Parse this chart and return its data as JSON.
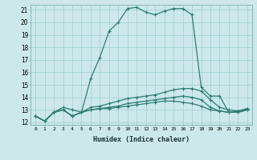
{
  "title": "",
  "xlabel": "Humidex (Indice chaleur)",
  "ylabel": "",
  "xlim": [
    -0.5,
    23.5
  ],
  "ylim": [
    11.8,
    21.4
  ],
  "yticks": [
    12,
    13,
    14,
    15,
    16,
    17,
    18,
    19,
    20,
    21
  ],
  "xticks": [
    0,
    1,
    2,
    3,
    4,
    5,
    6,
    7,
    8,
    9,
    10,
    11,
    12,
    13,
    14,
    15,
    16,
    17,
    18,
    19,
    20,
    21,
    22,
    23
  ],
  "bg_color": "#cde8ea",
  "line_color": "#2e7d72",
  "grid_color": "#9ecfcf",
  "lines": [
    {
      "x": [
        0,
        1,
        2,
        3,
        4,
        5,
        6,
        7,
        8,
        9,
        10,
        11,
        12,
        13,
        14,
        15,
        16,
        17,
        18,
        19,
        20,
        21,
        22,
        23
      ],
      "y": [
        12.5,
        12.1,
        12.8,
        13.2,
        13.0,
        12.8,
        15.5,
        17.2,
        19.3,
        20.0,
        21.1,
        21.2,
        20.8,
        20.6,
        20.9,
        21.1,
        21.1,
        20.6,
        14.8,
        14.1,
        14.1,
        12.8,
        12.9,
        13.1
      ]
    },
    {
      "x": [
        0,
        1,
        2,
        3,
        4,
        5,
        6,
        7,
        8,
        9,
        10,
        11,
        12,
        13,
        14,
        15,
        16,
        17,
        18,
        19,
        20,
        21,
        22,
        23
      ],
      "y": [
        12.5,
        12.1,
        12.8,
        13.0,
        12.5,
        12.8,
        13.2,
        13.3,
        13.5,
        13.7,
        13.9,
        14.0,
        14.1,
        14.2,
        14.4,
        14.6,
        14.7,
        14.7,
        14.5,
        13.8,
        13.2,
        13.0,
        12.9,
        13.1
      ]
    },
    {
      "x": [
        0,
        1,
        2,
        3,
        4,
        5,
        6,
        7,
        8,
        9,
        10,
        11,
        12,
        13,
        14,
        15,
        16,
        17,
        18,
        19,
        20,
        21,
        22,
        23
      ],
      "y": [
        12.5,
        12.1,
        12.8,
        13.0,
        12.5,
        12.8,
        13.0,
        13.1,
        13.2,
        13.3,
        13.5,
        13.6,
        13.7,
        13.8,
        13.9,
        14.0,
        14.1,
        14.0,
        13.8,
        13.2,
        12.9,
        12.8,
        12.8,
        13.0
      ]
    },
    {
      "x": [
        0,
        1,
        2,
        3,
        4,
        5,
        6,
        7,
        8,
        9,
        10,
        11,
        12,
        13,
        14,
        15,
        16,
        17,
        18,
        19,
        20,
        21,
        22,
        23
      ],
      "y": [
        12.5,
        12.1,
        12.8,
        13.0,
        12.5,
        12.8,
        13.0,
        13.1,
        13.1,
        13.2,
        13.3,
        13.4,
        13.5,
        13.6,
        13.7,
        13.7,
        13.6,
        13.5,
        13.3,
        13.0,
        12.9,
        12.8,
        12.8,
        13.0
      ]
    }
  ]
}
